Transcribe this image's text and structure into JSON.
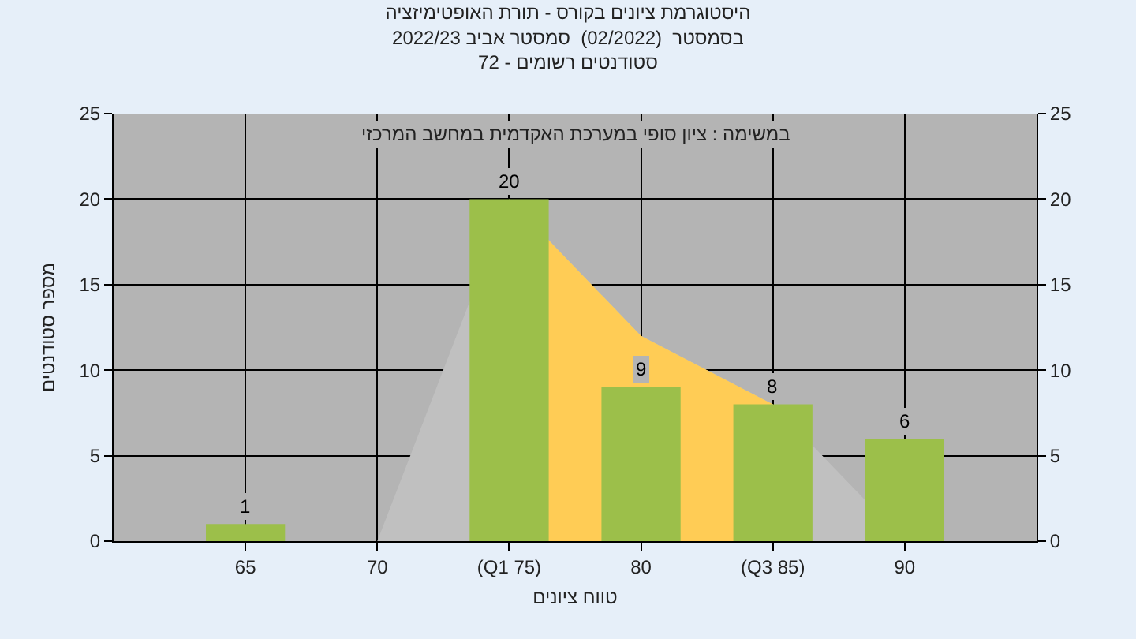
{
  "chart_data": {
    "type": "bar",
    "title": "היסטוגרמת ציונים בקורס - תורת האופטימיזציה\nבסמסטר  (02/2022)  סמסטר אביב 2022/23\nסטודנטים רשומים - 72",
    "xlabel": "טווח ציונים",
    "ylabel": "מספר סטודנטים",
    "annotations": [
      "במשימה : ציון סופי במערכת האקדמית במחשב המרכזי"
    ],
    "categories": [
      "65",
      "70",
      "(Q1 75)",
      "80",
      "(Q3 85)",
      "90"
    ],
    "series": [
      {
        "type": "area",
        "color": "#c0c0c0",
        "values": [
          0,
          0,
          20,
          12,
          8,
          0
        ]
      },
      {
        "type": "area",
        "color": "#ffcc55",
        "values": [
          null,
          null,
          20,
          12,
          8,
          null
        ]
      },
      {
        "color": "#9cbf4a",
        "values": [
          1,
          0,
          20,
          9,
          8,
          6
        ],
        "value_labels": [
          "1",
          null,
          "20",
          "9",
          "8",
          "6"
        ]
      }
    ],
    "ylim": [
      0,
      25
    ],
    "yticks": [
      0,
      5,
      10,
      15,
      20,
      25
    ],
    "y2lim": [
      0,
      25
    ],
    "y2ticks": [
      0,
      5,
      10,
      15,
      20,
      25
    ],
    "grid": true
  }
}
